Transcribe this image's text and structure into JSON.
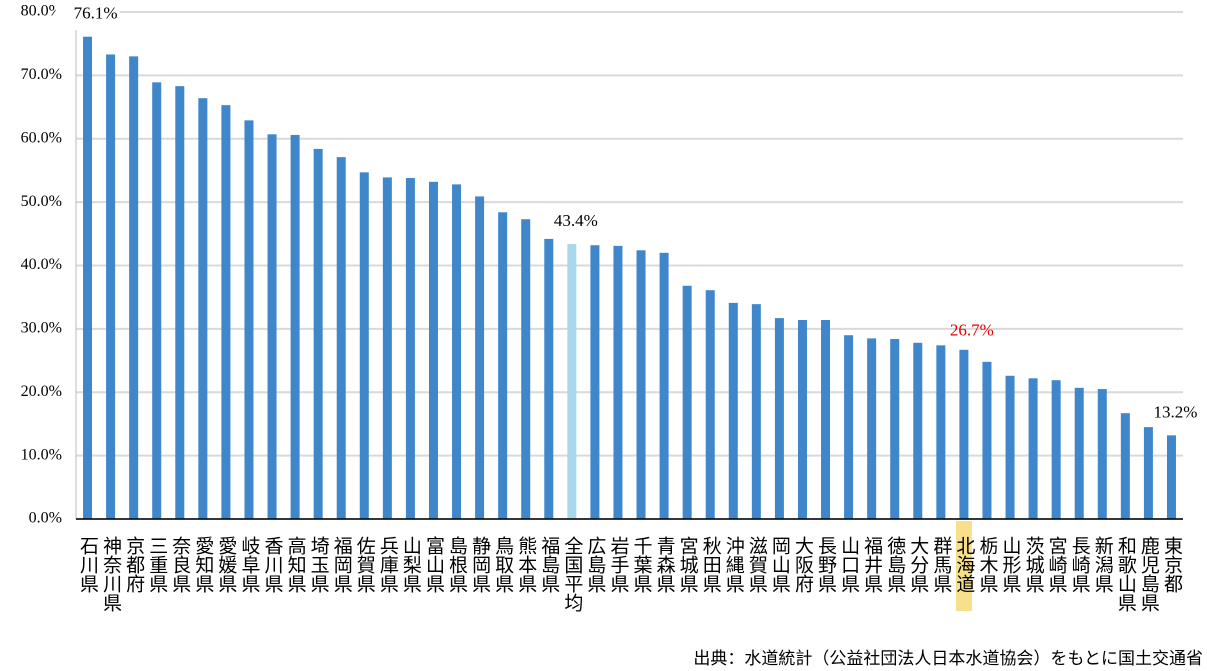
{
  "chart_data": {
    "type": "bar",
    "categories": [
      "石川県",
      "神奈川県",
      "京都府",
      "三重県",
      "奈良県",
      "愛知県",
      "愛媛県",
      "岐阜県",
      "香川県",
      "高知県",
      "埼玉県",
      "福岡県",
      "佐賀県",
      "兵庫県",
      "山梨県",
      "富山県",
      "島根県",
      "静岡県",
      "鳥取県",
      "熊本県",
      "福島県",
      "全国平均",
      "広島県",
      "岩手県",
      "千葉県",
      "青森県",
      "宮城県",
      "秋田県",
      "沖縄県",
      "滋賀県",
      "岡山県",
      "大阪府",
      "長野県",
      "山口県",
      "福井県",
      "徳島県",
      "大分県",
      "群馬県",
      "北海道",
      "栃木県",
      "山形県",
      "茨城県",
      "宮崎県",
      "長崎県",
      "新潟県",
      "和歌山県",
      "鹿児島県",
      "東京都"
    ],
    "values": [
      76.1,
      73.3,
      73.0,
      68.9,
      68.3,
      66.4,
      65.3,
      62.9,
      60.7,
      60.6,
      58.4,
      57.1,
      54.7,
      53.9,
      53.8,
      53.2,
      52.8,
      50.9,
      48.4,
      47.3,
      44.2,
      43.4,
      43.2,
      43.1,
      42.4,
      42.0,
      36.8,
      36.1,
      34.1,
      33.9,
      31.7,
      31.4,
      31.4,
      29.0,
      28.5,
      28.4,
      27.8,
      27.4,
      26.7,
      24.8,
      22.6,
      22.2,
      21.9,
      20.7,
      20.5,
      16.7,
      14.5,
      13.2
    ],
    "value_labels": [
      "76.1%",
      null,
      null,
      null,
      null,
      null,
      null,
      null,
      null,
      null,
      null,
      null,
      null,
      null,
      null,
      null,
      null,
      null,
      null,
      null,
      null,
      "43.4%",
      null,
      null,
      null,
      null,
      null,
      null,
      null,
      null,
      null,
      null,
      null,
      null,
      null,
      null,
      null,
      null,
      "26.7%",
      null,
      null,
      null,
      null,
      null,
      null,
      null,
      null,
      "13.2%"
    ],
    "colors": [
      "#3f86cb",
      "#3f86cb",
      "#3f86cb",
      "#3f86cb",
      "#3f86cb",
      "#3f86cb",
      "#3f86cb",
      "#3f86cb",
      "#3f86cb",
      "#3f86cb",
      "#3f86cb",
      "#3f86cb",
      "#3f86cb",
      "#3f86cb",
      "#3f86cb",
      "#3f86cb",
      "#3f86cb",
      "#3f86cb",
      "#3f86cb",
      "#3f86cb",
      "#3f86cb",
      "#a9d8ea",
      "#3f86cb",
      "#3f86cb",
      "#3f86cb",
      "#3f86cb",
      "#3f86cb",
      "#3f86cb",
      "#3f86cb",
      "#3f86cb",
      "#3f86cb",
      "#3f86cb",
      "#3f86cb",
      "#3f86cb",
      "#3f86cb",
      "#3f86cb",
      "#3f86cb",
      "#3f86cb",
      "#3f86cb",
      "#3f86cb",
      "#3f86cb",
      "#3f86cb",
      "#3f86cb",
      "#3f86cb",
      "#3f86cb",
      "#3f86cb",
      "#3f86cb",
      "#3f86cb"
    ],
    "highlight": {
      "category": "北海道",
      "label_color": "#e00000",
      "band_color": "#f7e08c"
    },
    "ylim": [
      0,
      80
    ],
    "yticks": [
      {
        "value": 0,
        "label": "0.0%"
      },
      {
        "value": 10,
        "label": "10.0%"
      },
      {
        "value": 20,
        "label": "20.0%"
      },
      {
        "value": 30,
        "label": "30.0%"
      },
      {
        "value": 40,
        "label": "40.0%"
      },
      {
        "value": 50,
        "label": "50.0%"
      },
      {
        "value": 60,
        "label": "60.0%"
      },
      {
        "value": 70,
        "label": "70.0%"
      },
      {
        "value": 80,
        "label": "80.0%"
      }
    ],
    "grid": true,
    "source": "出典：水道統計（公益社団法人日本水道協会）をもとに国土交通省"
  }
}
